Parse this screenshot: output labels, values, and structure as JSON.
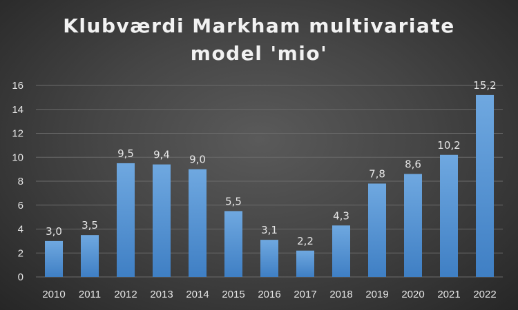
{
  "chart_data": {
    "type": "bar",
    "title": "Klubværdi Markham multivariate model 'mio'",
    "title_lines": [
      "Klubværdi Markham multivariate",
      "model 'mio'"
    ],
    "xlabel": "",
    "ylabel": "",
    "categories": [
      "2010",
      "2011",
      "2012",
      "2013",
      "2014",
      "2015",
      "2016",
      "2017",
      "2018",
      "2019",
      "2020",
      "2021",
      "2022"
    ],
    "values": [
      3.0,
      3.5,
      9.5,
      9.4,
      9.0,
      5.5,
      3.1,
      2.2,
      4.3,
      7.8,
      8.6,
      10.2,
      15.2
    ],
    "data_labels": [
      "3,0",
      "3,5",
      "9,5",
      "9,4",
      "9,0",
      "5,5",
      "3,1",
      "2,2",
      "4,3",
      "7,8",
      "8,6",
      "10,2",
      "15,2"
    ],
    "ylim": [
      0,
      16
    ],
    "yticks": [
      0,
      2,
      4,
      6,
      8,
      10,
      12,
      14,
      16
    ],
    "grid": true,
    "legend": "none",
    "colors": {
      "bar_top": "#6fa8e0",
      "bar_bottom": "#3f7fc4",
      "grid": "#6b6b6b",
      "text": "#e6e6e6"
    }
  }
}
